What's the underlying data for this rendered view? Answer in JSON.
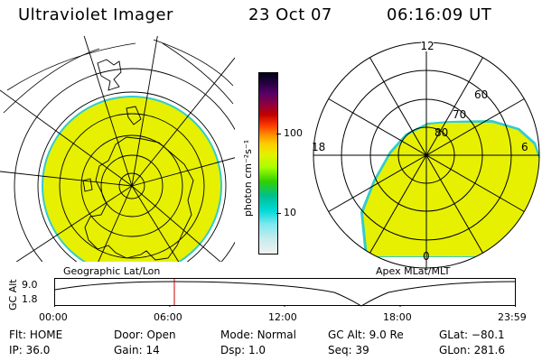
{
  "header": {
    "instrument": "Ultraviolet Imager",
    "date": "23 Oct 07",
    "time": "06:16:09 UT"
  },
  "colorbar": {
    "unit_label": "photon cm⁻²s⁻¹",
    "ticks": [
      "100",
      "10"
    ]
  },
  "polar_plot": {
    "ring_labels": [
      "80",
      "70",
      "60"
    ],
    "mlt_labels": {
      "top": "12",
      "left": "18",
      "right": "6",
      "bottom": "0"
    }
  },
  "panel_labels": {
    "geographic": "Geographic Lat/Lon",
    "apex": "Apex MLat/MLT"
  },
  "altitude_plot": {
    "ylabel": "GC Alt",
    "yticks": [
      "9.0",
      "1.8"
    ],
    "xticks": [
      "00:00",
      "06:00",
      "12:00",
      "18:00",
      "23:59"
    ],
    "marker_time": "06:16"
  },
  "status": {
    "flt_label": "Flt:",
    "flt_value": "HOME",
    "ip_label": "IP:",
    "ip_value": "36.0",
    "door_label": "Door:",
    "door_value": "Open",
    "gain_label": "Gain:",
    "gain_value": "14",
    "mode_label": "Mode:",
    "mode_value": "Normal",
    "dsp_label": "Dsp:",
    "dsp_value": "1.0",
    "gcalt_label": "GC Alt:",
    "gcalt_value": "9.0 Re",
    "seq_label": "Seq:",
    "seq_value": "39",
    "glat_label": "GLat:",
    "glat_value": "−80.1",
    "glon_label": "GLon:",
    "glon_value": "281.6"
  },
  "colors": {
    "aurora": "#e6f000",
    "edge": "#33cccc",
    "marker": "#cc0000"
  }
}
